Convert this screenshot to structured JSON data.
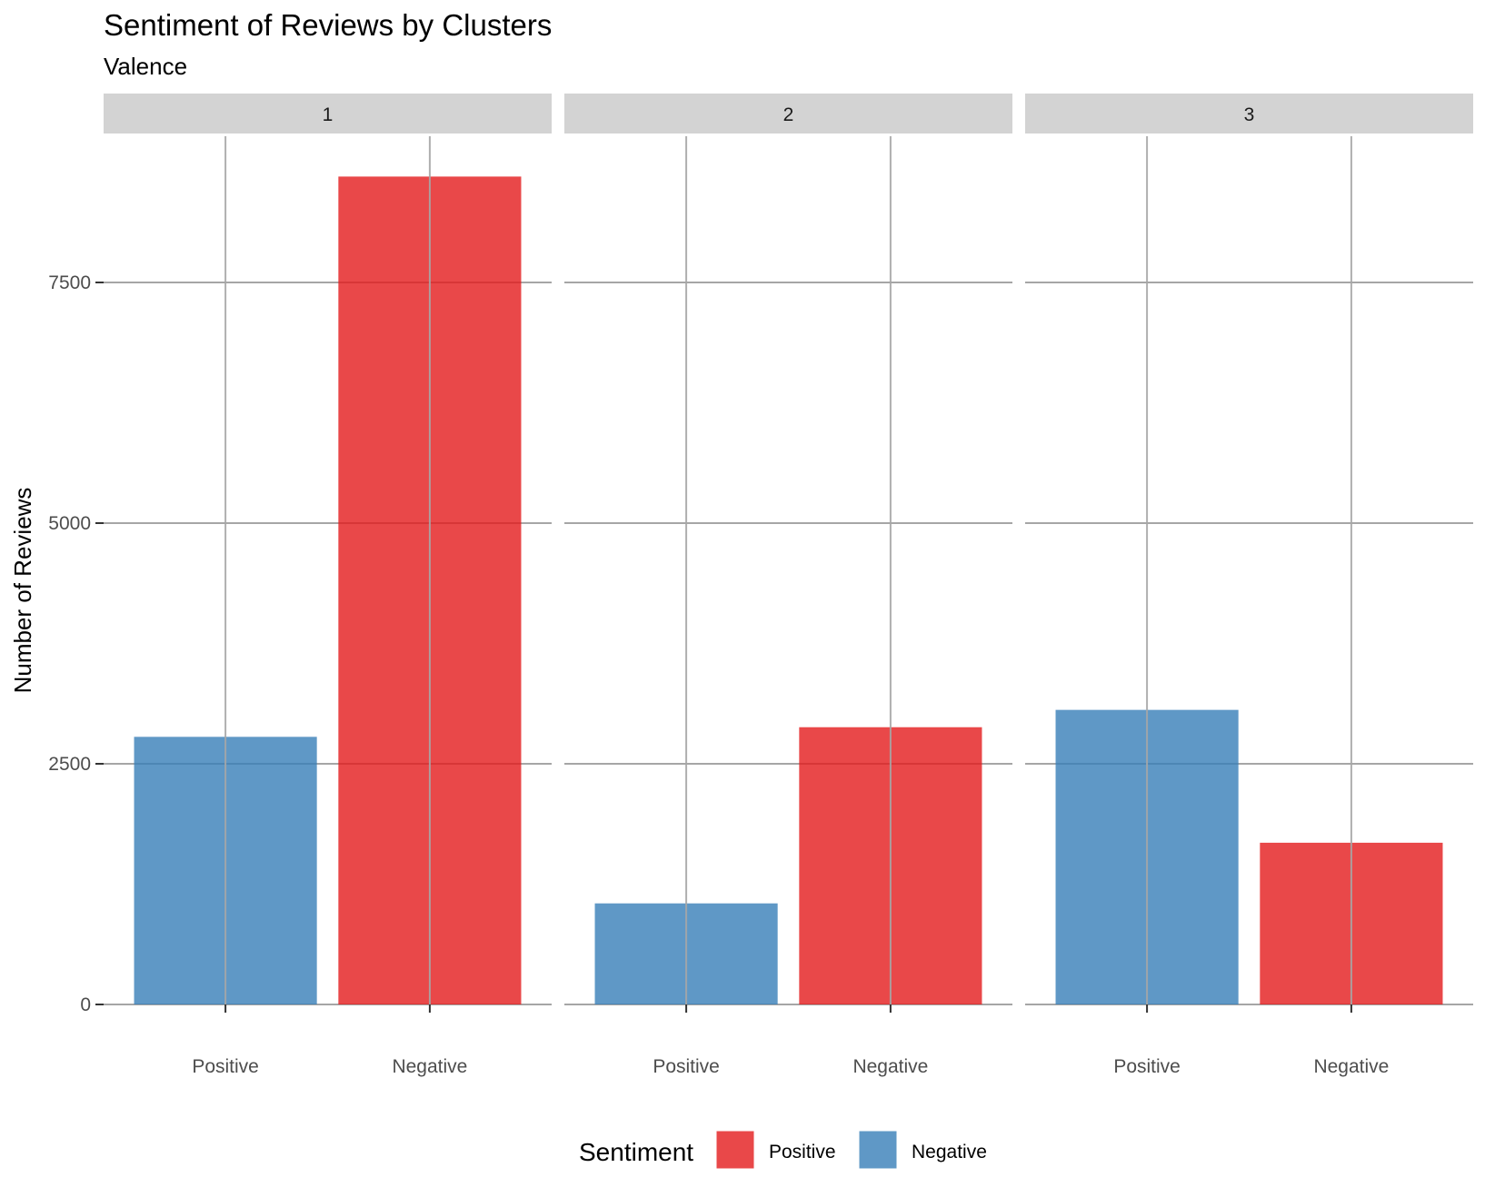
{
  "chart_data": {
    "type": "bar",
    "title": "Sentiment of Reviews by Clusters",
    "subtitle": "Valence",
    "xlabel": "",
    "ylabel": "Number of Reviews",
    "ylim": [
      0,
      9000
    ],
    "yticks": [
      0,
      2500,
      5000,
      7500
    ],
    "grid": true,
    "legend_position": "bottom",
    "categories": [
      "Positive",
      "Negative"
    ],
    "colors": {
      "Positive": "#e41a1c",
      "Negative": "#377eb8"
    },
    "bar_colors": [
      "#377eb8",
      "#e41a1c"
    ],
    "panels": [
      {
        "label": "1",
        "values": [
          2780,
          8600
        ]
      },
      {
        "label": "2",
        "values": [
          1050,
          2880
        ]
      },
      {
        "label": "3",
        "values": [
          3060,
          1680
        ]
      }
    ],
    "legend": {
      "title": "Sentiment",
      "entries": [
        {
          "label": "Positive",
          "color": "#e41a1c"
        },
        {
          "label": "Negative",
          "color": "#377eb8"
        }
      ]
    }
  }
}
